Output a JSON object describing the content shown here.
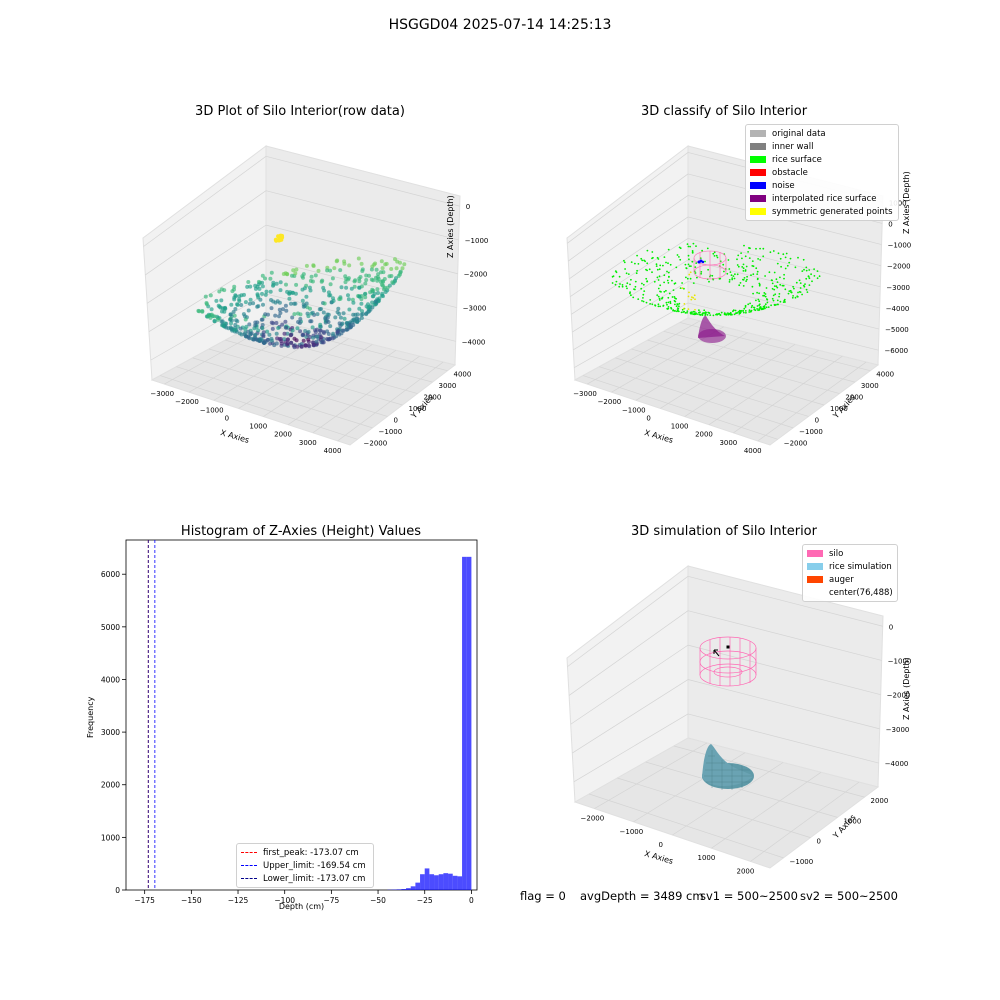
{
  "figure": {
    "suptitle": "HSGGD04 2025-07-14 14:25:13",
    "status": {
      "flag": "flag = 0",
      "avg_depth": "avgDepth = 3489 cm",
      "sv1": "sv1 = 500~2500",
      "sv2": "sv2 = 500~2500"
    }
  },
  "panels": {
    "raw": {
      "title": "3D Plot of Silo Interior(row data)",
      "xlabel": "X Axies",
      "ylabel": "Y Axies",
      "zlabel": "Z Axies (Depth)",
      "x_ticks": [
        "−3000",
        "−2000",
        "−1000",
        "0",
        "1000",
        "2000",
        "3000",
        "4000"
      ],
      "y_ticks": [
        "−2000",
        "−1000",
        "0",
        "1000",
        "2000",
        "3000",
        "4000"
      ],
      "z_ticks": [
        "0",
        "−1000",
        "−2000",
        "−3000",
        "−4000"
      ]
    },
    "classify": {
      "title": "3D classify of Silo Interior",
      "xlabel": "X Axies",
      "ylabel": "Y Axies",
      "zlabel": "Z Axies (Depth)",
      "x_ticks": [
        "−3000",
        "−2000",
        "−1000",
        "0",
        "1000",
        "2000",
        "3000",
        "4000"
      ],
      "y_ticks": [
        "−2000",
        "−1000",
        "0",
        "1000",
        "2000",
        "3000",
        "4000"
      ],
      "z_ticks": [
        "1000",
        "0",
        "−1000",
        "−2000",
        "−3000",
        "−4000",
        "−5000",
        "−6000"
      ],
      "legend": [
        {
          "label": "original data",
          "color": "#b3b3b3"
        },
        {
          "label": "inner wall",
          "color": "#808080"
        },
        {
          "label": "rice surface",
          "color": "#00ff00"
        },
        {
          "label": "obstacle",
          "color": "#ff0000"
        },
        {
          "label": "noise",
          "color": "#0000ff"
        },
        {
          "label": "interpolated rice surface",
          "color": "#800080"
        },
        {
          "label": "symmetric generated points",
          "color": "#ffff00"
        }
      ]
    },
    "simulation": {
      "title": "3D simulation of Silo Interior",
      "xlabel": "X Axies",
      "ylabel": "Y Axies",
      "zlabel": "Z Axies (Depth)",
      "x_ticks": [
        "−2000",
        "−1000",
        "0",
        "1000",
        "2000"
      ],
      "y_ticks": [
        "−1000",
        "0",
        "1000",
        "2000"
      ],
      "z_ticks": [
        "0",
        "−1000",
        "−2000",
        "−3000",
        "−4000"
      ],
      "legend": [
        {
          "label": "silo",
          "color": "#ff69b4"
        },
        {
          "label": "rice simulation",
          "color": "#87ceeb"
        },
        {
          "label": "auger",
          "color": "#ff4500"
        },
        {
          "label": "center(76,488)",
          "color": "#ffffff"
        }
      ]
    }
  },
  "chart_data": {
    "type": "bar",
    "title": "Histogram of Z-Axies (Height) Values",
    "xlabel": "Depth (cm)",
    "ylabel": "Frequency",
    "xlim": [
      -185,
      3
    ],
    "ylim": [
      0,
      6650
    ],
    "x_ticks": [
      -175,
      -150,
      -125,
      -100,
      -75,
      -50,
      -25,
      0
    ],
    "x_tick_labels": [
      "−175",
      "−150",
      "−125",
      "−100",
      "−75",
      "−50",
      "−25",
      "0"
    ],
    "y_ticks": [
      0,
      1000,
      2000,
      3000,
      4000,
      5000,
      6000
    ],
    "y_tick_labels": [
      "0",
      "1000",
      "2000",
      "3000",
      "4000",
      "5000",
      "6000"
    ],
    "bar_color": "#0000ff",
    "bins": [
      {
        "x0": -45,
        "x1": -42.5,
        "count": 5
      },
      {
        "x0": -42.5,
        "x1": -40,
        "count": 8
      },
      {
        "x0": -40,
        "x1": -37.5,
        "count": 12
      },
      {
        "x0": -37.5,
        "x1": -35,
        "count": 18
      },
      {
        "x0": -35,
        "x1": -32.5,
        "count": 35
      },
      {
        "x0": -32.5,
        "x1": -30,
        "count": 70
      },
      {
        "x0": -30,
        "x1": -27.5,
        "count": 140
      },
      {
        "x0": -27.5,
        "x1": -25,
        "count": 300
      },
      {
        "x0": -25,
        "x1": -22.5,
        "count": 410
      },
      {
        "x0": -22.5,
        "x1": -20,
        "count": 300
      },
      {
        "x0": -20,
        "x1": -17.5,
        "count": 280
      },
      {
        "x0": -17.5,
        "x1": -15,
        "count": 300
      },
      {
        "x0": -15,
        "x1": -12.5,
        "count": 320
      },
      {
        "x0": -12.5,
        "x1": -10,
        "count": 310
      },
      {
        "x0": -10,
        "x1": -7.5,
        "count": 270
      },
      {
        "x0": -7.5,
        "x1": -5,
        "count": 260
      },
      {
        "x0": -5,
        "x1": -2.5,
        "count": 6330
      },
      {
        "x0": -2.5,
        "x1": 0,
        "count": 6330
      }
    ],
    "vlines": [
      {
        "x": -173.07,
        "color": "#ff0000",
        "label": "first_peak: -173.07 cm"
      },
      {
        "x": -169.54,
        "color": "#0000ff",
        "label": "Upper_limit: -169.54 cm"
      },
      {
        "x": -173.07,
        "color": "#00008b",
        "label": "Lower_limit: -173.07 cm"
      }
    ],
    "legend_position": "lower center"
  }
}
